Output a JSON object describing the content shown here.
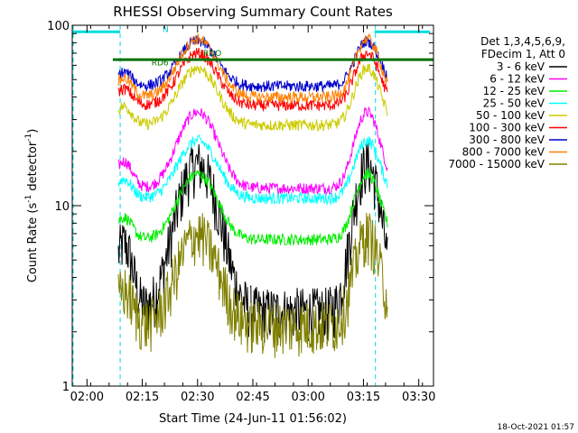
{
  "chart_data": {
    "type": "line",
    "title": "RHESSI Observing Summary Count Rates",
    "xlabel": "Start Time (24-Jun-11 01:56:02)",
    "ylabel_main": "Count Rate (s",
    "ylabel_sup1": "-1",
    "ylabel_mid": " detector",
    "ylabel_sup2": "-1",
    "ylabel_end": ")",
    "yscale": "log",
    "ylim": [
      1,
      100
    ],
    "xlim_min": [
      0,
      98
    ],
    "x_ticks": [
      {
        "label": "02:00",
        "min": 4
      },
      {
        "label": "02:15",
        "min": 19
      },
      {
        "label": "02:30",
        "min": 34
      },
      {
        "label": "02:45",
        "min": 49
      },
      {
        "label": "03:00",
        "min": 64
      },
      {
        "label": "03:15",
        "min": 79
      },
      {
        "label": "03:30",
        "min": 94
      }
    ],
    "y_ticks": [
      {
        "label": "1",
        "value": 1
      },
      {
        "label": "10",
        "value": 10
      },
      {
        "label": "100",
        "value": 100
      }
    ],
    "legend_header": [
      "Det 1,3,4,5,6,9,",
      "FDecim 1, Att 0"
    ],
    "legend_position": "right",
    "flag_labels": [
      {
        "text": "N",
        "x_min": 24.5,
        "y": 95,
        "color": "#00c8c8"
      },
      {
        "text": "RDO",
        "x_min": 35.5,
        "y": 70,
        "color": "#007000"
      },
      {
        "text": "RD6",
        "x_min": 21.5,
        "y": 62,
        "color": "#007000"
      }
    ],
    "night_intervals_min": [
      [
        0,
        13
      ],
      [
        82,
        98
      ]
    ],
    "data_window_min": [
      12.5,
      85.5
    ],
    "gaps_min": [
      48.2,
      64.0
    ],
    "series": [
      {
        "name": "3 - 6 keV",
        "color": "#000000",
        "base": 2.6,
        "peak": 17,
        "flat": 0
      },
      {
        "name": "6 - 12 keV",
        "color": "#ff00ff",
        "base": 12.5,
        "peak": 33,
        "flat": 0
      },
      {
        "name": "12 - 25 keV",
        "color": "#00ee00",
        "base": 6.5,
        "peak": 15,
        "flat": 0
      },
      {
        "name": "25 - 50 keV",
        "color": "#00ffff",
        "base": 11,
        "peak": 23,
        "flat": 0
      },
      {
        "name": "50 - 100 keV",
        "color": "#cccc00",
        "base": 28,
        "peak": 58,
        "flat": 0
      },
      {
        "name": "100 - 300 keV",
        "color": "#ff0000",
        "base": 36,
        "peak": 70,
        "flat": 0
      },
      {
        "name": "300 - 800 keV",
        "color": "#0000cc",
        "base": 46,
        "peak": 82,
        "flat": 0
      },
      {
        "name": "800 - 7000 keV",
        "color": "#ff7f00",
        "base": 40,
        "peak": 84,
        "flat": 0
      },
      {
        "name": "7000 - 15000 keV",
        "color": "#808000",
        "base": 2.2,
        "peak": 7,
        "flat": 0
      }
    ],
    "decim_line": {
      "value": 64.5,
      "color": "#007000"
    },
    "cyan_flag_value": 92
  },
  "footer_date": "18-Oct-2021 01:57"
}
